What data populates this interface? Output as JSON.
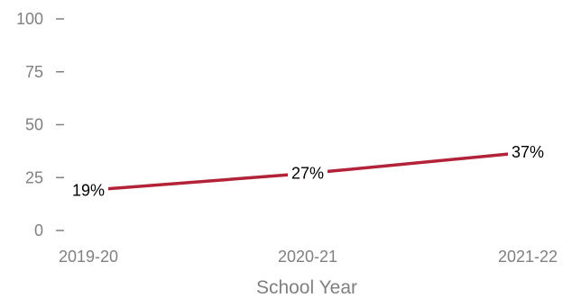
{
  "chart_data": {
    "type": "line",
    "title": "",
    "xlabel": "School Year",
    "ylabel": "",
    "categories": [
      "2019-20",
      "2020-21",
      "2021-22"
    ],
    "series": [
      {
        "values": [
          19,
          27,
          37
        ],
        "labels": [
          "19%",
          "27%",
          "37%"
        ],
        "color": "#b22238"
      }
    ],
    "yticks": [
      0,
      25,
      50,
      75,
      100
    ],
    "ytick_labels": [
      "0",
      "25",
      "50",
      "75",
      "100"
    ],
    "ylim": [
      0,
      100
    ],
    "grid": false,
    "legend": "none"
  },
  "colors": {
    "axis_text": "#808080",
    "label_text": "#000000",
    "line": "#b22238"
  }
}
